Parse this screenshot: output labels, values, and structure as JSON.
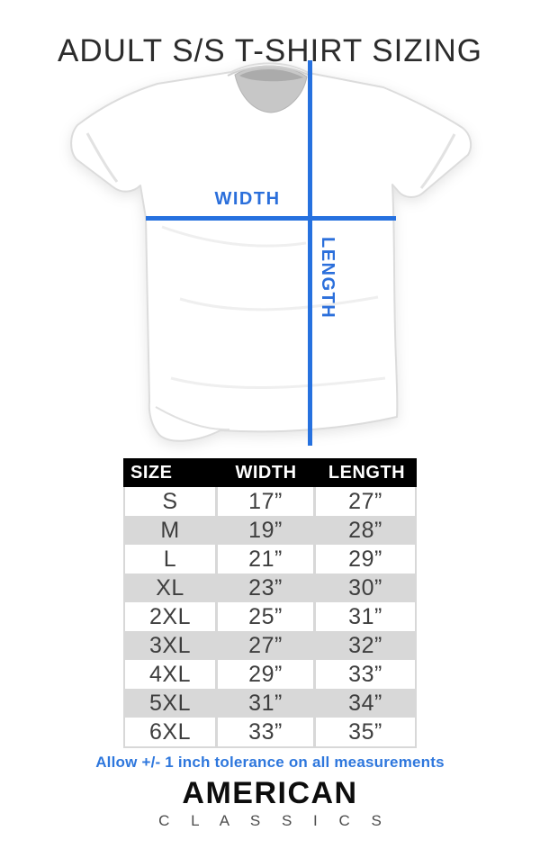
{
  "title": "ADULT S/S T-SHIRT SIZING",
  "diagram": {
    "width_label": "WIDTH",
    "length_label": "LENGTH",
    "shirt_description": "white short-sleeve crew-neck t-shirt laid flat"
  },
  "table": {
    "headers": [
      "SIZE",
      "WIDTH",
      "LENGTH"
    ],
    "rows": [
      [
        "S",
        "17”",
        "27”"
      ],
      [
        "M",
        "19”",
        "28”"
      ],
      [
        "L",
        "21”",
        "29”"
      ],
      [
        "XL",
        "23”",
        "30”"
      ],
      [
        "2XL",
        "25”",
        "31”"
      ],
      [
        "3XL",
        "27”",
        "32”"
      ],
      [
        "4XL",
        "29”",
        "33”"
      ],
      [
        "5XL",
        "31”",
        "34”"
      ],
      [
        "6XL",
        "33”",
        "35”"
      ]
    ]
  },
  "note": "Allow +/- 1 inch tolerance on all measurements",
  "brand": {
    "name": "AMERICAN",
    "subname": "C L A S S I C S"
  },
  "colors": {
    "accent_blue": "#2671df",
    "label_blue": "#2b6fdb",
    "note_blue": "#2e77dd",
    "header_bg": "#000000",
    "header_text": "#ffffff",
    "row_gray": "#d8d8d8",
    "cell_text": "#3e3e3e",
    "title_text": "#2c2c2c"
  },
  "chart_data": {
    "type": "table",
    "title": "ADULT S/S T-SHIRT SIZING",
    "columns": [
      "SIZE",
      "WIDTH",
      "LENGTH"
    ],
    "categories": [
      "S",
      "M",
      "L",
      "XL",
      "2XL",
      "3XL",
      "4XL",
      "5XL",
      "6XL"
    ],
    "series": [
      {
        "name": "WIDTH (inches)",
        "values": [
          17,
          19,
          21,
          23,
          25,
          27,
          29,
          31,
          33
        ]
      },
      {
        "name": "LENGTH (inches)",
        "values": [
          27,
          28,
          29,
          30,
          31,
          32,
          33,
          34,
          35
        ]
      }
    ],
    "annotations": [
      "Allow +/- 1 inch tolerance on all measurements"
    ]
  }
}
